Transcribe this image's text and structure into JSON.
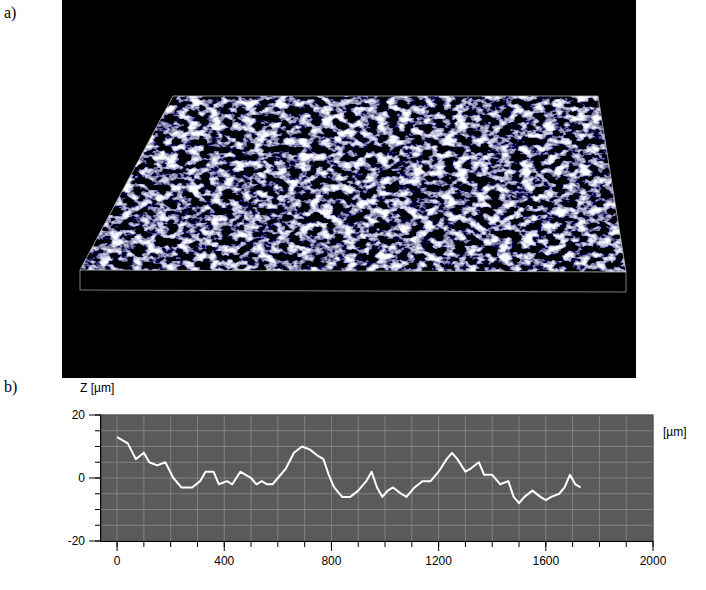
{
  "figure": {
    "labels": [
      "a)",
      "b)"
    ]
  },
  "chart_data": {
    "type": "line",
    "y_label": "Z [µm]",
    "x_label": "[µm]",
    "color": "#ffffff",
    "grid": true,
    "xlim": [
      -60,
      2000
    ],
    "ylim": [
      -20,
      20
    ],
    "xticks": [
      0,
      400,
      800,
      1200,
      1600,
      2000
    ],
    "yticks": [
      -20,
      0,
      20
    ],
    "xticks_minor": [
      0,
      100,
      200,
      300,
      400,
      500,
      600,
      700,
      800,
      900,
      1000,
      1100,
      1200,
      1300,
      1400,
      1500,
      1600,
      1700,
      1800,
      1900,
      2000
    ],
    "yticks_minor": [
      -20,
      -15,
      -10,
      -5,
      0,
      5,
      10,
      15,
      20
    ],
    "x": [
      0,
      40,
      70,
      100,
      120,
      150,
      180,
      210,
      240,
      280,
      310,
      330,
      360,
      380,
      410,
      430,
      460,
      480,
      500,
      520,
      540,
      560,
      580,
      600,
      630,
      660,
      690,
      720,
      750,
      770,
      790,
      810,
      840,
      870,
      900,
      930,
      950,
      970,
      990,
      1010,
      1030,
      1060,
      1080,
      1110,
      1140,
      1170,
      1200,
      1230,
      1250,
      1270,
      1300,
      1320,
      1350,
      1370,
      1400,
      1430,
      1460,
      1480,
      1500,
      1520,
      1550,
      1580,
      1600,
      1620,
      1650,
      1670,
      1690,
      1710,
      1730
    ],
    "values": [
      13,
      11,
      6,
      8,
      5,
      4,
      5,
      0,
      -3,
      -3,
      -1,
      2,
      2,
      -2,
      -1,
      -2,
      2,
      1,
      0,
      -2,
      -1,
      -2,
      -2,
      0,
      3,
      8,
      10,
      9,
      7,
      6,
      1,
      -3,
      -6,
      -6,
      -4,
      -1,
      2,
      -3,
      -6,
      -4,
      -3,
      -5,
      -6,
      -3,
      -1,
      -1,
      2,
      6,
      8,
      6,
      2,
      3,
      5,
      1,
      1,
      -2,
      -1,
      -6,
      -8,
      -6,
      -4,
      -6,
      -7,
      -6,
      -5,
      -3,
      1,
      -2,
      -3
    ]
  }
}
